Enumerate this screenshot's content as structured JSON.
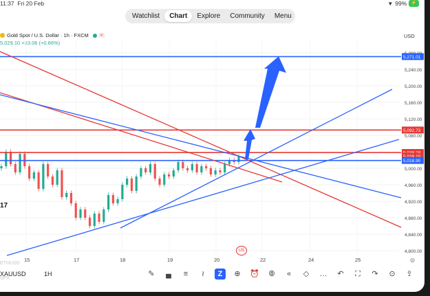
{
  "status": {
    "time": "11:37",
    "date": "Fri 20 Feb",
    "battery": "99%"
  },
  "nav": {
    "tabs": [
      "Watchlist",
      "Chart",
      "Explore",
      "Community",
      "Menu"
    ],
    "active": "Chart"
  },
  "legend": {
    "title": "Gold Spot / U.S. Dollar · 1h · FXCM",
    "price_line": "5,029.10  +33.06 (+0.66%)",
    "currency": "USD"
  },
  "bottom": {
    "symbol": "XAUUSD",
    "timeframe": "1H",
    "faded_top": "ETHUSD",
    "faded_bottom": "SPX"
  },
  "tools": [
    "pencil-icon",
    "chart-type-icon",
    "indicators-icon",
    "line-tool-icon",
    "zap-icon",
    "add-icon",
    "alarm-icon",
    "replay-icon",
    "rewind-icon",
    "layers-icon",
    "more-icon",
    "undo-icon",
    "fullscreen-icon",
    "redo-icon",
    "magnet-icon",
    "share-icon"
  ],
  "colors": {
    "red": "#e53935",
    "blue": "#2962ff",
    "green": "#22ab94",
    "candle_red": "#ef5350"
  },
  "chart_data": {
    "type": "candlestick",
    "x_ticks": [
      "15",
      "17",
      "18",
      "19",
      "20",
      "22",
      "24",
      "25"
    ],
    "y_ticks": [
      5280.0,
      5240.0,
      5200.0,
      5160.0,
      5120.0,
      5080.0,
      5000.0,
      4960.0,
      4920.0,
      4880.0,
      4840.0,
      4800.0
    ],
    "y_tick_labels": [
      "5,280.00",
      "5,240.00",
      "5,200.00",
      "5,160.00",
      "5,120.00",
      "5,080.00",
      "5,000.00",
      "4,960.00",
      "4,920.00",
      "4,880.00",
      "4,840.00",
      "4,800.00"
    ],
    "ylim": [
      4790,
      5300
    ],
    "price_labels": [
      {
        "text": "5,271.01",
        "value": 5271.01,
        "color": "#2962ff"
      },
      {
        "text": "5,092.73",
        "value": 5092.73,
        "color": "#e53935"
      },
      {
        "text": "5,038.28",
        "value": 5038.28,
        "color": "#e53935"
      },
      {
        "text": "5,029.10",
        "value": 5029.1,
        "color": "#e53935"
      },
      {
        "text": "5,018.90",
        "value": 5018.9,
        "color": "#2962ff"
      }
    ],
    "horizontal_levels": [
      {
        "value": 5271.01,
        "color": "#2962ff"
      },
      {
        "value": 5092.73,
        "color": "#e53935"
      },
      {
        "value": 5038.28,
        "color": "#e53935"
      },
      {
        "value": 5018.9,
        "color": "#2962ff"
      }
    ],
    "close_path": [
      5005,
      5040,
      5010,
      4990,
      5035,
      5005,
      4975,
      4990,
      4950,
      5010,
      4980,
      4960,
      4995,
      4930,
      4940,
      4915,
      4880,
      4900,
      4880,
      4860,
      4890,
      4870,
      4900,
      4935,
      4915,
      4925,
      4960,
      4975,
      4945,
      4980,
      5000,
      4990,
      5010,
      4975,
      4960,
      4985,
      4980,
      4995,
      5015,
      5000,
      4995,
      5010,
      4990,
      5005,
      5000,
      4985,
      4995,
      4990,
      5010,
      5020,
      5015,
      5029
    ]
  }
}
